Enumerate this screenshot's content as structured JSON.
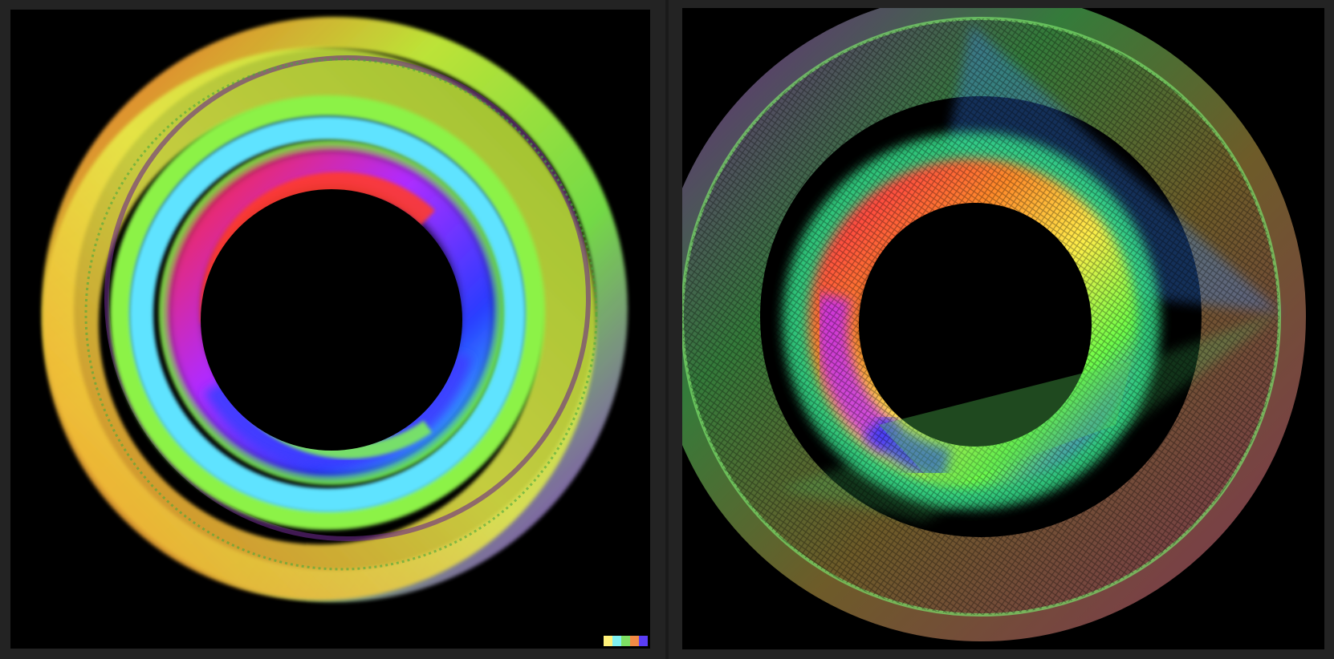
{
  "panels": [
    {
      "name": "spiral-ring-artwork-left"
    },
    {
      "name": "string-ring-artwork-right"
    }
  ],
  "palette": {
    "swatches": [
      "#fff27a",
      "#7ff0f0",
      "#7ddf63",
      "#f28a45",
      "#5a3df5"
    ]
  },
  "colors": {
    "background": "#232323",
    "panel": "#000000"
  }
}
